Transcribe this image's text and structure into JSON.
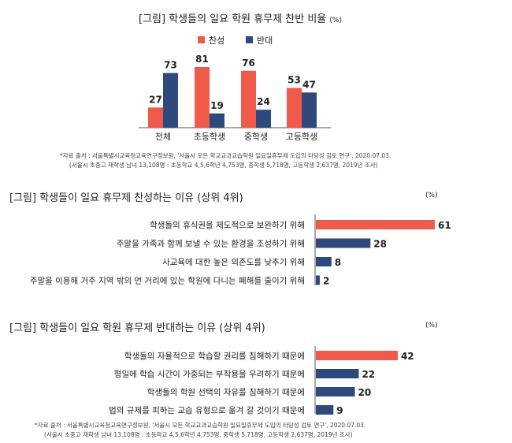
{
  "colors": {
    "agree": "#f05a4a",
    "oppose": "#2e4a7d",
    "axis": "#555555",
    "text": "#222222"
  },
  "chart1": {
    "title": "[그림] 학생들의 일요 학원 휴무제 찬반 비율",
    "unit": "(%)",
    "legend": {
      "agree": "찬성",
      "oppose": "반대"
    },
    "source_line1": "*자료 출처 : 서울특별시교육청교육연구정보원, '서울시 모든 학교교과교습학원 일요일휴무제 도입의 타당성 검토 연구', 2020.07.03.",
    "source_line2": "(서울시 초중고 재학생 남녀 13,108명 : 초등학교 4,5,6학년 4,753명, 중학생 5,718명, 고등학생 2,637명, 2019년 조사)"
  },
  "chart2": {
    "title": "[그림] 학생들이 일요 휴무제 찬성하는 이유 (상위 4위)",
    "unit": "(%)"
  },
  "chart3": {
    "title": "[그림] 학생들이 일요 학원 휴무제 반대하는 이유 (상위 4위)",
    "unit": "(%)",
    "source_line1": "*자료 출처 : 서울특별시교육청교육연구정보원, '서울시 모든 학교교과교습학원 일요일휴무제 도입의 타당성 검토 연구', 2020.07.03.",
    "source_line2": "(서울시 초중고 재학생 남녀 13,108명 : 초등학교 4,5,6학년 4,753명, 중학생 5,718명, 고등학생 2,637명, 2019년 조사)"
  },
  "chart_data": [
    {
      "type": "bar",
      "title": "[그림] 학생들의 일요 학원 휴무제 찬반 비율",
      "categories": [
        "전체",
        "초등학생",
        "중학생",
        "고등학생"
      ],
      "series": [
        {
          "name": "찬성",
          "values": [
            27,
            81,
            76,
            53
          ]
        },
        {
          "name": "반대",
          "values": [
            73,
            19,
            24,
            47
          ]
        }
      ],
      "ylim": [
        0,
        100
      ],
      "xlabel": "",
      "ylabel": "(%)"
    },
    {
      "type": "bar",
      "orientation": "horizontal",
      "title": "[그림] 학생들이 일요 휴무제 찬성하는 이유 (상위 4위)",
      "categories": [
        "학생들의 휴식권을 제도적으로 보완하기 위해",
        "주말을 가족과 함께 보낼 수 있는 환경을 조성하기 위해",
        "사교육에 대한 높은 의존도를 낮추기 위해",
        "주말을 이용해 거주 지역 밖의 먼 거리에 있는 학원에 다니는 폐해를 줄이기 위해"
      ],
      "values": [
        61,
        28,
        8,
        2
      ],
      "xlim": [
        0,
        61
      ],
      "unit": "(%)"
    },
    {
      "type": "bar",
      "orientation": "horizontal",
      "title": "[그림] 학생들이 일요 학원 휴무제 반대하는 이유 (상위 4위)",
      "categories": [
        "학생들의 자율적으로 학습할 권리를 침해하기 때문에",
        "평일에 학습 시간이 가중되는 부작용을 우려하기 때문에",
        "학생들의 학원 선택의 자유를 침해하기 때문에",
        "법의 규제를 피하는 교습 유형으로 옮겨 갈 것이기 때문에"
      ],
      "values": [
        42,
        22,
        20,
        9
      ],
      "xlim": [
        0,
        61
      ],
      "unit": "(%)"
    }
  ]
}
